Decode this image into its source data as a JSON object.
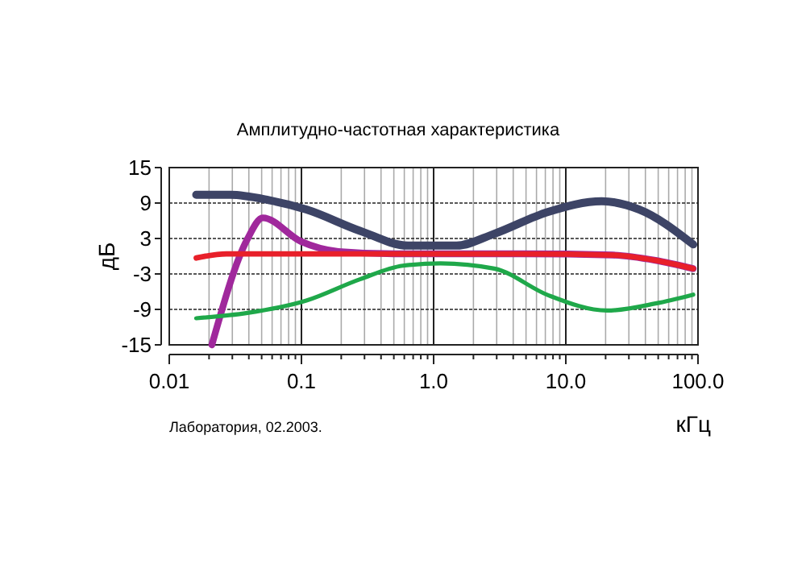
{
  "chart_data": {
    "type": "line",
    "title": "Амплитудно-частотная характеристика",
    "xlabel": "кГц",
    "ylabel": "дБ",
    "annotations": [
      "Лаборатория, 02.2003."
    ],
    "log": "x",
    "grid": true,
    "marker": "none",
    "line_style": "solid",
    "xlim": [
      0.01,
      100
    ],
    "ylim": [
      -15,
      15
    ],
    "xticks": [
      {
        "value": 0.01,
        "label": "0.01"
      },
      {
        "value": 0.02,
        "label": null
      },
      {
        "value": 0.03,
        "label": null
      },
      {
        "value": 0.04,
        "label": null
      },
      {
        "value": 0.05,
        "label": null
      },
      {
        "value": 0.06,
        "label": null
      },
      {
        "value": 0.07,
        "label": null
      },
      {
        "value": 0.08,
        "label": null
      },
      {
        "value": 0.09,
        "label": null
      },
      {
        "value": 0.1,
        "label": "0.1"
      },
      {
        "value": 0.2,
        "label": null
      },
      {
        "value": 0.3,
        "label": null
      },
      {
        "value": 0.4,
        "label": null
      },
      {
        "value": 0.5,
        "label": null
      },
      {
        "value": 0.6,
        "label": null
      },
      {
        "value": 0.7,
        "label": null
      },
      {
        "value": 0.8,
        "label": null
      },
      {
        "value": 0.9,
        "label": null
      },
      {
        "value": 1,
        "label": "1.0"
      },
      {
        "value": 2,
        "label": null
      },
      {
        "value": 3,
        "label": null
      },
      {
        "value": 4,
        "label": null
      },
      {
        "value": 5,
        "label": null
      },
      {
        "value": 6,
        "label": null
      },
      {
        "value": 7,
        "label": null
      },
      {
        "value": 8,
        "label": null
      },
      {
        "value": 9,
        "label": null
      },
      {
        "value": 10,
        "label": "10.0"
      },
      {
        "value": 20,
        "label": null
      },
      {
        "value": 30,
        "label": null
      },
      {
        "value": 40,
        "label": null
      },
      {
        "value": 50,
        "label": null
      },
      {
        "value": 60,
        "label": null
      },
      {
        "value": 70,
        "label": null
      },
      {
        "value": 80,
        "label": null
      },
      {
        "value": 90,
        "label": null
      },
      {
        "value": 100,
        "label": "100.0"
      }
    ],
    "yticks": [
      -15,
      -9,
      -3,
      3,
      9,
      15
    ],
    "series": [
      {
        "color": "#3d4466",
        "x": [
          0.016,
          0.029,
          0.0565,
          0.109,
          0.277,
          0.64,
          1.49,
          2.88,
          7.35,
          18.7,
          36,
          92
        ],
        "values": [
          10.4,
          10.4,
          9.5,
          7.9,
          4.3,
          1.8,
          1.8,
          3.8,
          7.5,
          9.3,
          7.9,
          2.0
        ]
      },
      {
        "color": "#a0289c",
        "x": [
          0.021,
          0.039,
          0.051,
          0.099,
          0.19,
          0.5,
          4.6,
          22.6,
          47.7,
          92
        ],
        "values": [
          -15,
          2.9,
          6.5,
          2.5,
          0.8,
          0.4,
          0.4,
          0.2,
          -0.7,
          -2.1
        ]
      },
      {
        "color": "#e8202a",
        "x": [
          0.016,
          0.027,
          0.109,
          4.6,
          22.6,
          47.7,
          92
        ],
        "values": [
          -0.3,
          0.4,
          0.4,
          0.4,
          0.2,
          -0.7,
          -2.1
        ]
      },
      {
        "color": "#1fa84a",
        "x": [
          0.016,
          0.039,
          0.109,
          0.277,
          0.585,
          1.13,
          2.88,
          7.35,
          20.5,
          47.7,
          92
        ],
        "values": [
          -10.5,
          -9.6,
          -7.5,
          -3.9,
          -1.6,
          -1.2,
          -2.1,
          -6.6,
          -9.2,
          -8.0,
          -6.5
        ]
      }
    ]
  }
}
